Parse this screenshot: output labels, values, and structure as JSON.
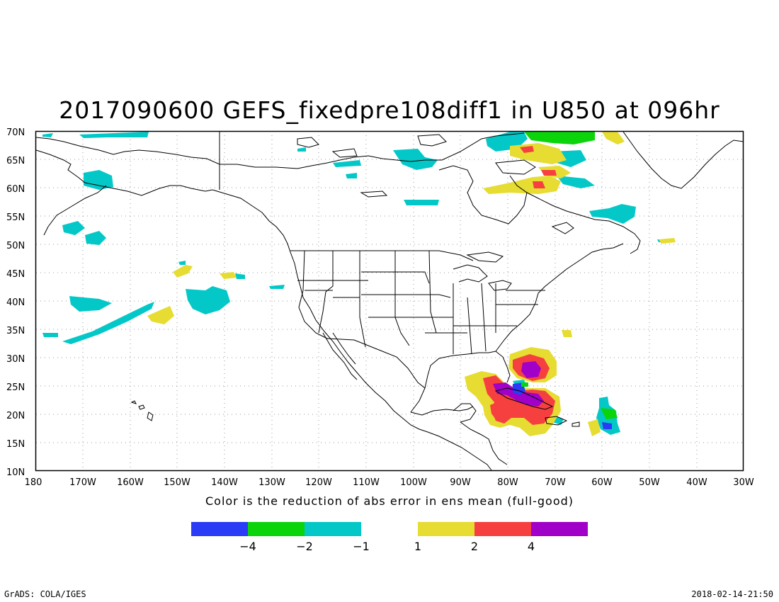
{
  "title": "2017090600 GEFS_fixedpre108diff1 in U850 at 096hr",
  "subtitle": "Color is the reduction of abs error in ens mean (full-good)",
  "footer": {
    "left": "GrADS: COLA/IGES",
    "right": "2018-02-14-21:50"
  },
  "axes": {
    "lat_labels": [
      "70N",
      "65N",
      "60N",
      "55N",
      "50N",
      "45N",
      "40N",
      "35N",
      "30N",
      "25N",
      "20N",
      "15N",
      "10N"
    ],
    "lon_labels": [
      "180",
      "170W",
      "160W",
      "150W",
      "140W",
      "130W",
      "120W",
      "110W",
      "100W",
      "90W",
      "80W",
      "70W",
      "60W",
      "50W",
      "40W",
      "30W"
    ]
  },
  "legend": {
    "colors": [
      "#2a3cf5",
      "#0bd40b",
      "#04c8c8",
      "#e6dc32",
      "#f64040",
      "#a000c8"
    ],
    "labels": [
      "−4",
      "−2",
      "−1",
      "1",
      "2",
      "4"
    ]
  },
  "field_colors": {
    "cyan": "#04c8c8",
    "yellow": "#e6dc32",
    "red": "#f64040",
    "purple": "#a000c8",
    "blue": "#2a3cf5",
    "green": "#0bd40b"
  }
}
